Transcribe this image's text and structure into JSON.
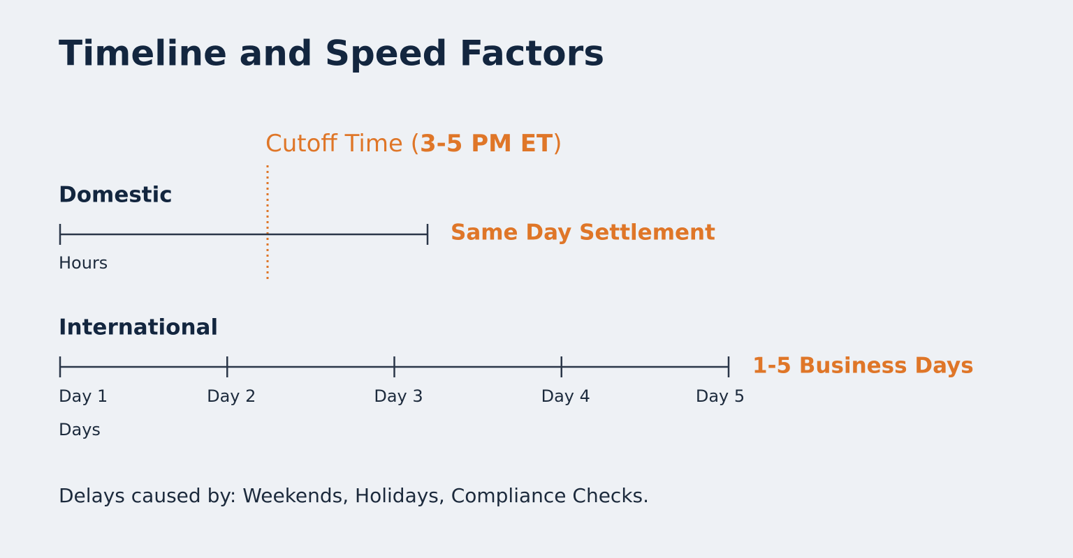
{
  "title": "Timeline and Speed Factors",
  "cutoff": {
    "prefix": "Cutoff Time (",
    "emphasis": "3-5 PM ET",
    "suffix": ")"
  },
  "domestic": {
    "label": "Domestic",
    "result": "Same Day Settlement",
    "unit": "Hours"
  },
  "international": {
    "label": "International",
    "result": "1-5 Business Days",
    "ticks": [
      "Day 1",
      "Day 2",
      "Day 3",
      "Day 4",
      "Day 5"
    ],
    "unit": "Days"
  },
  "note": "Delays caused by: Weekends, Holidays, Compliance Checks."
}
